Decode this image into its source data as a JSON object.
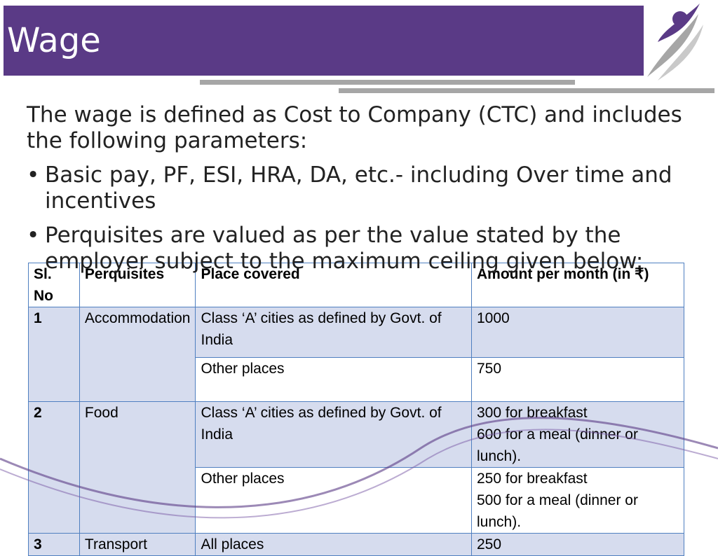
{
  "header": {
    "title": "Wage"
  },
  "body": {
    "intro": "The wage is defined as Cost to Company (CTC) and includes the following parameters:",
    "bullets": [
      "Basic pay, PF, ESI, HRA, DA, etc.- including Over time and incentives",
      "Perquisites are valued as per the value stated by the employer subject to the maximum ceiling given below:"
    ]
  },
  "table": {
    "columns": [
      "Sl. No",
      "Perquisites",
      "Place covered",
      "Amount per month (in ₹)"
    ],
    "groups": [
      {
        "no": "1",
        "perquisite": "Accommodation",
        "places": [
          {
            "place": "Class ‘A’ cities as defined by Govt. of India",
            "amount": [
              "1000"
            ]
          },
          {
            "place": "Other places",
            "amount": [
              "750"
            ]
          }
        ]
      },
      {
        "no": "2",
        "perquisite": "Food",
        "places": [
          {
            "place": "Class ‘A’ cities as defined by Govt. of India",
            "amount": [
              "300 for breakfast",
              "600 for a meal (dinner or lunch)."
            ]
          },
          {
            "place": "Other places",
            "amount": [
              "250 for breakfast",
              "500 for a meal (dinner or lunch)."
            ]
          }
        ]
      },
      {
        "no": "3",
        "perquisite": "Transport",
        "places": [
          {
            "place": "All places",
            "amount": [
              "250"
            ]
          }
        ]
      }
    ]
  }
}
